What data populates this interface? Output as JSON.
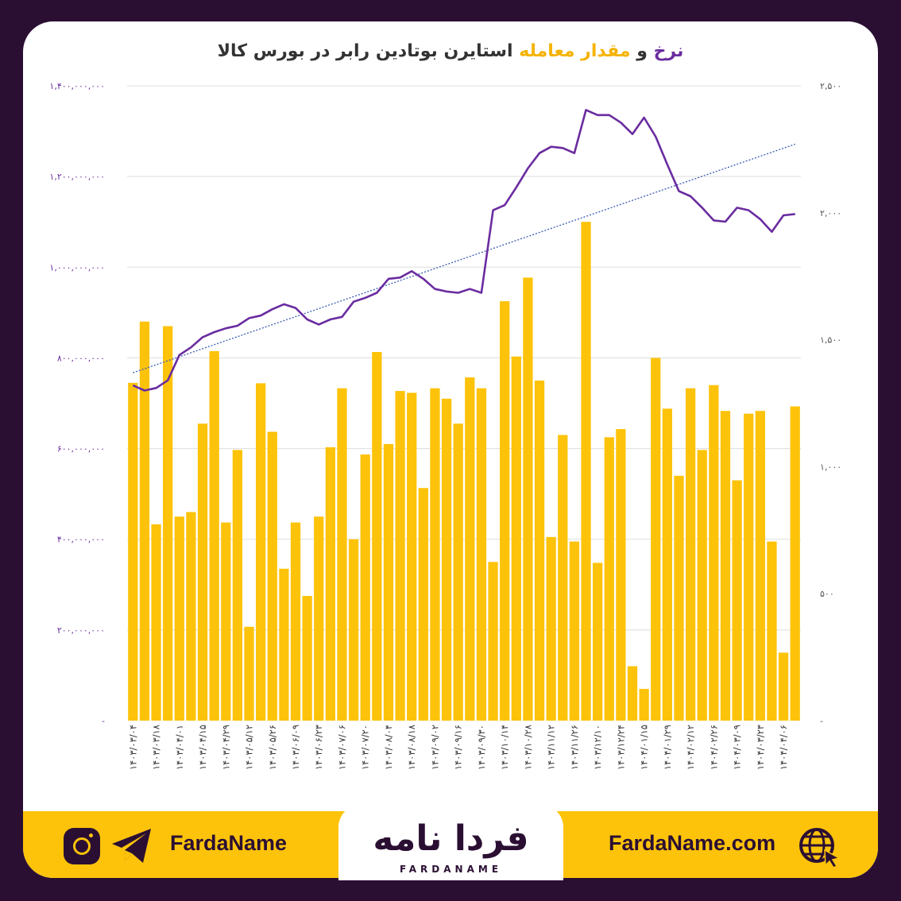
{
  "title": {
    "part_rate": "نرخ",
    "part_and": "و",
    "part_volume": "مقدار معامله",
    "part_rest": "استایرن بوتادین رابر در بورس کالا"
  },
  "colors": {
    "background": "#2b0f33",
    "bar": "#fdc30a",
    "line": "#6a2ca0",
    "trend": "#3b5bb5",
    "footer": "#fdc30a",
    "grid": "#dddddd"
  },
  "footer": {
    "handle": "FardaName",
    "website": "FardaName.com",
    "logo_fa": "فردا نامه",
    "logo_en": "FARDANAME",
    "icons": [
      "instagram-icon",
      "telegram-icon",
      "globe-icon"
    ]
  },
  "chart_data": {
    "type": "bar",
    "left_axis": {
      "ticks": [
        "-",
        "۲۰۰,۰۰۰,۰۰۰",
        "۴۰۰,۰۰۰,۰۰۰",
        "۶۰۰,۰۰۰,۰۰۰",
        "۸۰۰,۰۰۰,۰۰۰",
        "۱,۰۰۰,۰۰۰,۰۰۰",
        "۱,۲۰۰,۰۰۰,۰۰۰",
        "۱,۴۰۰,۰۰۰,۰۰۰"
      ],
      "ylim": [
        0,
        1400000000
      ]
    },
    "right_axis": {
      "ticks": [
        "-",
        "۵۰۰",
        "۱,۰۰۰",
        "۱,۵۰۰",
        "۲,۰۰۰",
        "۲,۵۰۰"
      ],
      "ylim": [
        0,
        2500
      ]
    },
    "x_tick_labels": [
      "۱۴۰۳/۰۳/۰۴",
      "۱۴۰۳/۰۳/۱۸",
      "۱۴۰۳/۰۴/۰۱",
      "۱۴۰۳/۰۴/۱۵",
      "۱۴۰۳/۰۴/۲۹",
      "۱۴۰۳/۰۵/۱۲",
      "۱۴۰۳/۰۵/۲۶",
      "۱۴۰۳/۰۶/۰۹",
      "۱۴۰۳/۰۶/۲۳",
      "۱۴۰۳/۰۷/۰۶",
      "۱۴۰۳/۰۷/۲۰",
      "۱۴۰۳/۰۸/۰۴",
      "۱۴۰۳/۰۸/۱۸",
      "۱۴۰۳/۰۹/۰۲",
      "۱۴۰۳/۰۹/۱۶",
      "۱۴۰۳/۰۹/۳۰",
      "۱۴۰۳/۱۰/۱۴",
      "۱۴۰۳/۱۰/۲۸",
      "۱۴۰۳/۱۱/۱۲",
      "۱۴۰۳/۱۱/۲۶",
      "۱۴۰۳/۱۲/۱۰",
      "۱۴۰۳/۱۲/۲۴",
      "۱۴۰۴/۰۱/۱۵",
      "۱۴۰۴/۰۱/۲۹",
      "۱۴۰۴/۰۲/۱۲",
      "۱۴۰۴/۰۲/۲۶",
      "۱۴۰۴/۰۳/۰۹",
      "۱۴۰۴/۰۳/۲۳",
      "۱۴۰۴/۰۴/۰۶"
    ],
    "bar_series": {
      "axis": "left",
      "values": [
        745000000,
        880000000,
        433000000,
        870000000,
        450000000,
        460000000,
        655000000,
        815000000,
        437000000,
        597000000,
        207000000,
        744000000,
        637000000,
        335000000,
        437000000,
        275000000,
        450000000,
        603000000,
        733000000,
        400000000,
        587000000,
        813000000,
        610000000,
        727000000,
        723000000,
        513000000,
        733000000,
        710000000,
        655000000,
        757000000,
        733000000,
        350000000,
        925000000,
        803000000,
        977000000,
        750000000,
        405000000,
        630000000,
        395000000,
        1100000000,
        348000000,
        625000000,
        643000000,
        120000000,
        70000000,
        800000000,
        688000000,
        540000000,
        733000000,
        597000000,
        740000000,
        683000000,
        530000000,
        677000000,
        683000000,
        395000000,
        150000000,
        693000000
      ]
    },
    "line_series": {
      "axis": "right",
      "values": [
        1320,
        1300,
        1310,
        1340,
        1440,
        1470,
        1510,
        1530,
        1545,
        1555,
        1585,
        1595,
        1620,
        1640,
        1625,
        1580,
        1560,
        1580,
        1590,
        1650,
        1665,
        1685,
        1740,
        1745,
        1770,
        1740,
        1700,
        1690,
        1685,
        1700,
        1685,
        2010,
        2030,
        2100,
        2175,
        2235,
        2260,
        2255,
        2235,
        2405,
        2385,
        2385,
        2355,
        2310,
        2375,
        2300,
        2190,
        2085,
        2065,
        2020,
        1970,
        1965,
        2020,
        2010,
        1975,
        1925,
        1990,
        1995
      ]
    },
    "trend_series": {
      "axis": "right",
      "start": 1370,
      "end": 2270
    },
    "grid": true,
    "legend": "none"
  }
}
